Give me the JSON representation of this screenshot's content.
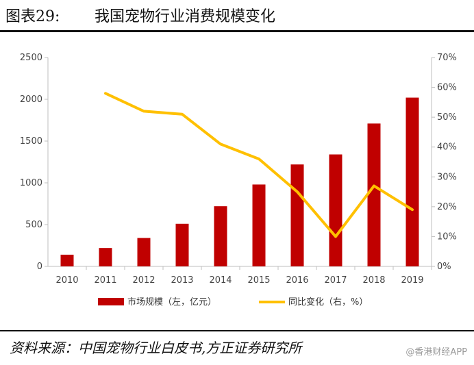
{
  "figure": {
    "label": "图表29:",
    "title": "我国宠物行业消费规模变化",
    "source": "资料来源：中国宠物行业白皮书,方正证券研究所",
    "watermark": "@香港财经APP"
  },
  "colors": {
    "bar": "#C00000",
    "line": "#FFC000",
    "axis": "#bfbfbf"
  },
  "chart_data": {
    "type": "bar",
    "categories": [
      "2010",
      "2011",
      "2012",
      "2013",
      "2014",
      "2015",
      "2016",
      "2017",
      "2018",
      "2019"
    ],
    "series": [
      {
        "name": "市场规模（左，亿元）",
        "type": "bar",
        "axis": "left",
        "values": [
          140,
          220,
          340,
          510,
          720,
          980,
          1220,
          1340,
          1710,
          2020
        ]
      },
      {
        "name": "同比变化（右，%）",
        "type": "line",
        "axis": "right",
        "values": [
          null,
          58,
          52,
          51,
          41,
          36,
          25,
          10,
          27,
          19
        ]
      }
    ],
    "y_left": {
      "min": 0,
      "max": 2500,
      "ticks": [
        0,
        500,
        1000,
        1500,
        2000,
        2500
      ]
    },
    "y_right": {
      "min": 0,
      "max": 70,
      "ticks": [
        "0%",
        "10%",
        "20%",
        "30%",
        "40%",
        "50%",
        "60%",
        "70%"
      ]
    },
    "legend_position": "bottom"
  }
}
